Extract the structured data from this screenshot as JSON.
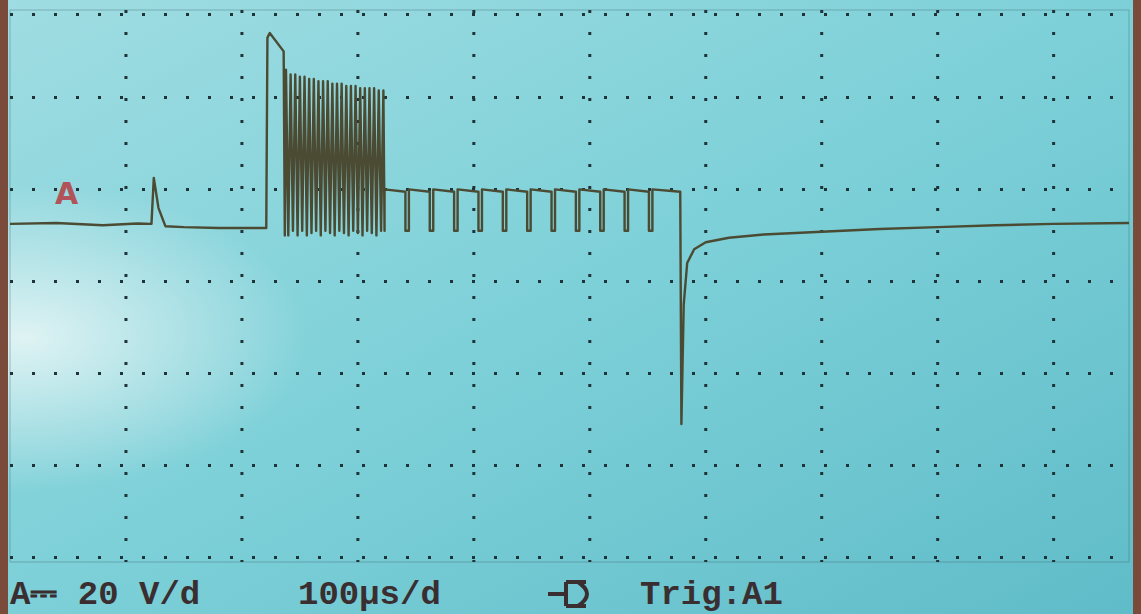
{
  "chart_data": {
    "type": "line",
    "x": [
      0,
      40,
      80,
      110,
      122,
      124,
      128,
      134,
      150,
      180,
      221,
      222,
      224,
      236,
      237,
      238,
      240,
      242,
      244,
      246,
      248,
      250,
      252,
      254,
      256,
      258,
      260,
      262,
      264,
      266,
      268,
      270,
      272,
      274,
      276,
      278,
      280,
      282,
      284,
      286,
      288,
      290,
      292,
      294,
      296,
      298,
      300,
      302,
      304,
      306,
      308,
      310,
      312,
      314,
      316,
      318,
      320,
      322,
      323,
      323,
      341,
      341,
      344,
      344,
      362,
      362,
      365,
      365,
      383,
      383,
      386,
      386,
      404,
      404,
      407,
      407,
      425,
      425,
      428,
      428,
      446,
      446,
      449,
      449,
      467,
      467,
      470,
      470,
      488,
      488,
      491,
      491,
      509,
      509,
      512,
      512,
      530,
      530,
      533,
      533,
      551,
      551,
      554,
      554,
      578,
      579,
      581,
      584,
      590,
      600,
      620,
      650,
      700,
      750,
      800,
      850,
      900,
      965
    ],
    "values": [
      -0.5,
      -0.3,
      -0.8,
      -0.4,
      -0.5,
      9.5,
      3,
      -1,
      -1.2,
      -1.4,
      -1.4,
      40,
      41,
      37,
      -3,
      33,
      -3,
      32,
      -2,
      32,
      -3,
      31.5,
      -2,
      31.5,
      -3,
      31,
      -2.5,
      31,
      -2,
      30.5,
      -3,
      30.5,
      -2,
      30.5,
      -2.5,
      30,
      -3,
      30,
      -2,
      30,
      -2.5,
      29.5,
      -3,
      29.5,
      -2,
      29.5,
      -2.5,
      29,
      -3,
      29,
      -2,
      29,
      -2.5,
      29,
      -3,
      28.5,
      -2,
      28.5,
      -2,
      7,
      6.5,
      -2,
      -2,
      7,
      6.5,
      -2,
      -2,
      7,
      6.5,
      -2,
      -2,
      7,
      6.5,
      -2,
      -2,
      7,
      6.5,
      -2,
      -2,
      7,
      6.5,
      -2,
      -2,
      7,
      6.5,
      -2,
      -2,
      7,
      6.5,
      -2,
      -2,
      7,
      6.5,
      -2,
      -2,
      7,
      6.5,
      -2,
      -2,
      7,
      6.5,
      -2,
      -2,
      7,
      6.5,
      -44,
      -18,
      -9,
      -6,
      -4.5,
      -3.5,
      -2.8,
      -2.2,
      -1.6,
      -1.2,
      -0.8,
      -0.5,
      -0.3
    ],
    "color": "#4b4a32",
    "xlim": [
      0,
      965
    ],
    "xticks": [
      100,
      200,
      300,
      400,
      500,
      600,
      700,
      800,
      900
    ],
    "ylim": [
      -74,
      46
    ],
    "yticks": [
      -73,
      -53,
      -33,
      -13,
      7,
      27,
      45
    ],
    "grid": true,
    "tick_labels": false,
    "annotations": [
      "A"
    ],
    "status": [
      "A⎓ 20 V/d",
      "100µs/d",
      "Trig:A1"
    ]
  }
}
